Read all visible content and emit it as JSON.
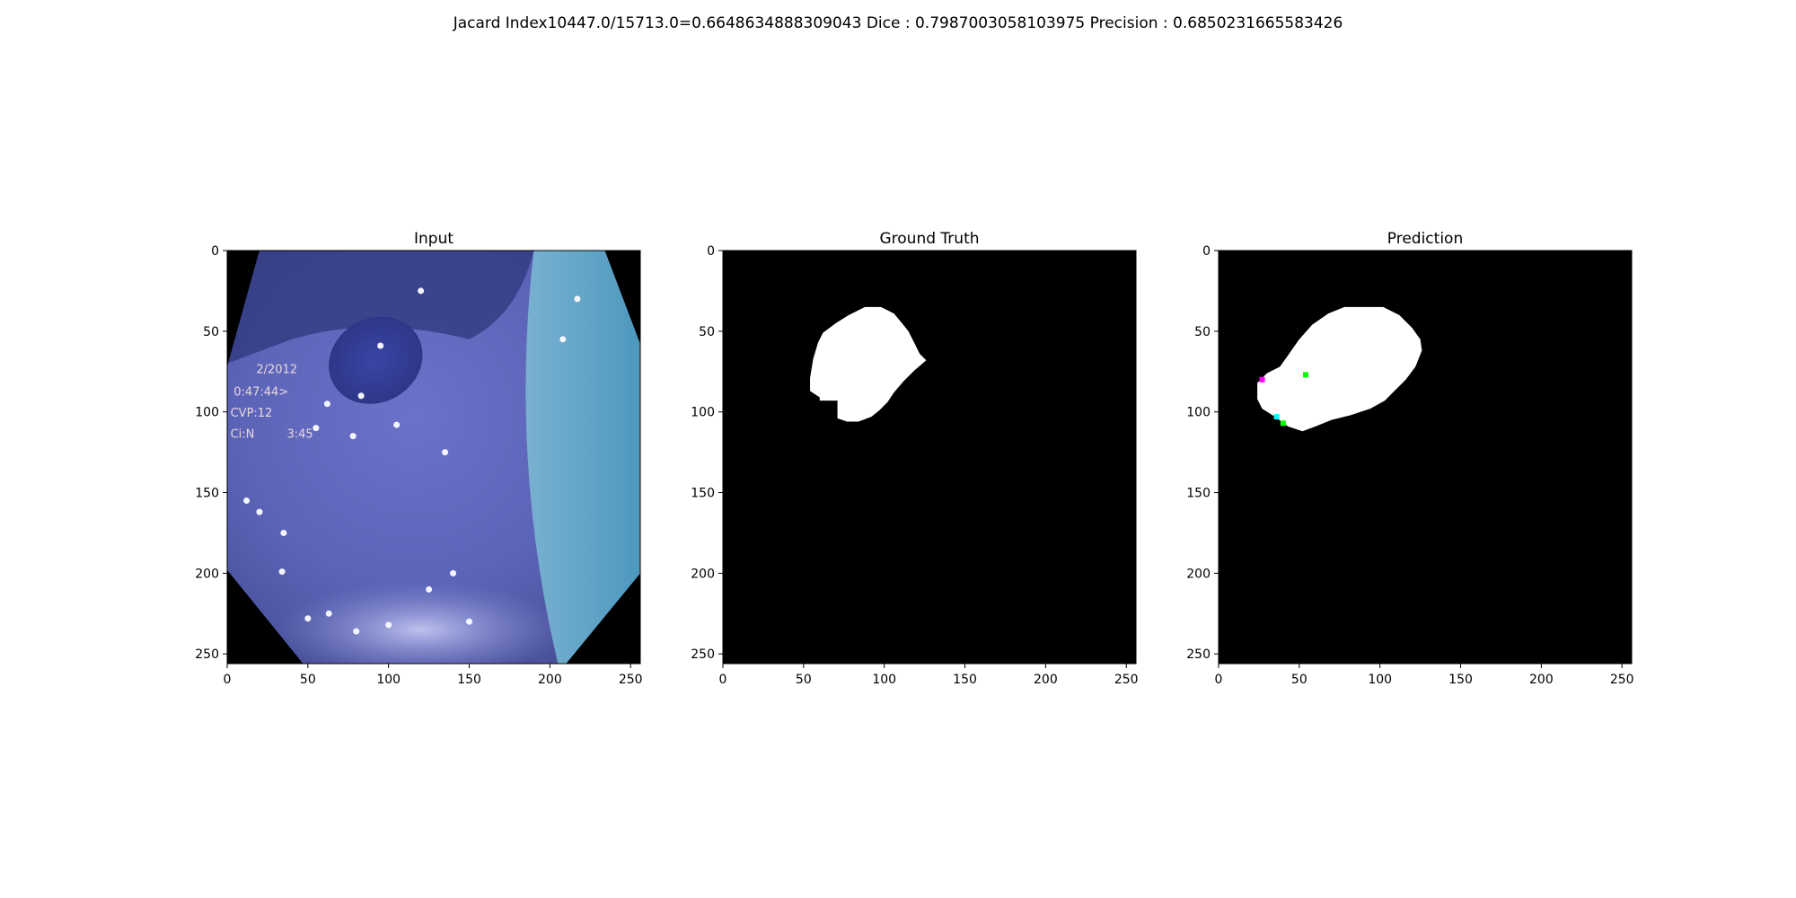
{
  "figure": {
    "suptitle": "Jacard Index10447.0/15713.0=0.6648634888309043 Dice : 0.7987003058103975 Precision : 0.6850231665583426"
  },
  "chart_data": [
    {
      "type": "image",
      "title": "Input",
      "xlim": [
        0,
        256
      ],
      "ylim": [
        256,
        0
      ],
      "xticks": [
        0,
        50,
        100,
        150,
        200,
        250
      ],
      "yticks": [
        0,
        50,
        100,
        150,
        200,
        250
      ],
      "overlay_text": [
        "2/2012",
        "0:47:44>",
        "CVP:12",
        "Ci:N",
        "3:45"
      ]
    },
    {
      "type": "image",
      "title": "Ground Truth",
      "xlim": [
        0,
        256
      ],
      "ylim": [
        256,
        0
      ],
      "xticks": [
        0,
        50,
        100,
        150,
        200,
        250
      ],
      "yticks": [
        0,
        50,
        100,
        150,
        200,
        250
      ],
      "mask_polygon": [
        [
          88,
          35
        ],
        [
          98,
          35
        ],
        [
          106,
          39
        ],
        [
          111,
          45
        ],
        [
          115,
          50
        ],
        [
          118,
          56
        ],
        [
          122,
          64
        ],
        [
          126,
          68
        ],
        [
          119,
          74
        ],
        [
          112,
          81
        ],
        [
          106,
          88
        ],
        [
          102,
          94
        ],
        [
          97,
          99
        ],
        [
          92,
          103
        ],
        [
          84,
          106
        ],
        [
          77,
          106
        ],
        [
          71,
          104
        ],
        [
          71,
          93
        ],
        [
          60,
          93
        ],
        [
          60,
          91
        ],
        [
          54,
          87
        ],
        [
          54,
          79
        ],
        [
          56,
          67
        ],
        [
          59,
          57
        ],
        [
          62,
          51
        ],
        [
          70,
          45
        ],
        [
          78,
          40
        ]
      ]
    },
    {
      "type": "image",
      "title": "Prediction",
      "xlim": [
        0,
        256
      ],
      "ylim": [
        256,
        0
      ],
      "xticks": [
        0,
        50,
        100,
        150,
        200,
        250
      ],
      "yticks": [
        0,
        50,
        100,
        150,
        200,
        250
      ],
      "mask_polygon": [
        [
          78,
          35
        ],
        [
          102,
          35
        ],
        [
          112,
          40
        ],
        [
          120,
          48
        ],
        [
          125,
          55
        ],
        [
          126,
          62
        ],
        [
          122,
          72
        ],
        [
          116,
          80
        ],
        [
          110,
          86
        ],
        [
          103,
          93
        ],
        [
          94,
          98
        ],
        [
          82,
          102
        ],
        [
          70,
          105
        ],
        [
          60,
          109
        ],
        [
          52,
          112
        ],
        [
          43,
          109
        ],
        [
          35,
          103
        ],
        [
          27,
          98
        ],
        [
          24,
          92
        ],
        [
          24,
          82
        ],
        [
          30,
          76
        ],
        [
          38,
          72
        ],
        [
          43,
          65
        ],
        [
          50,
          55
        ],
        [
          58,
          46
        ],
        [
          68,
          39
        ]
      ],
      "speck_points": [
        [
          54,
          77
        ],
        [
          27,
          80
        ],
        [
          36,
          103
        ],
        [
          40,
          107
        ]
      ],
      "speck_colors": [
        "#00ff00",
        "#ff00ff",
        "#00ffff",
        "#00ff00"
      ]
    }
  ]
}
